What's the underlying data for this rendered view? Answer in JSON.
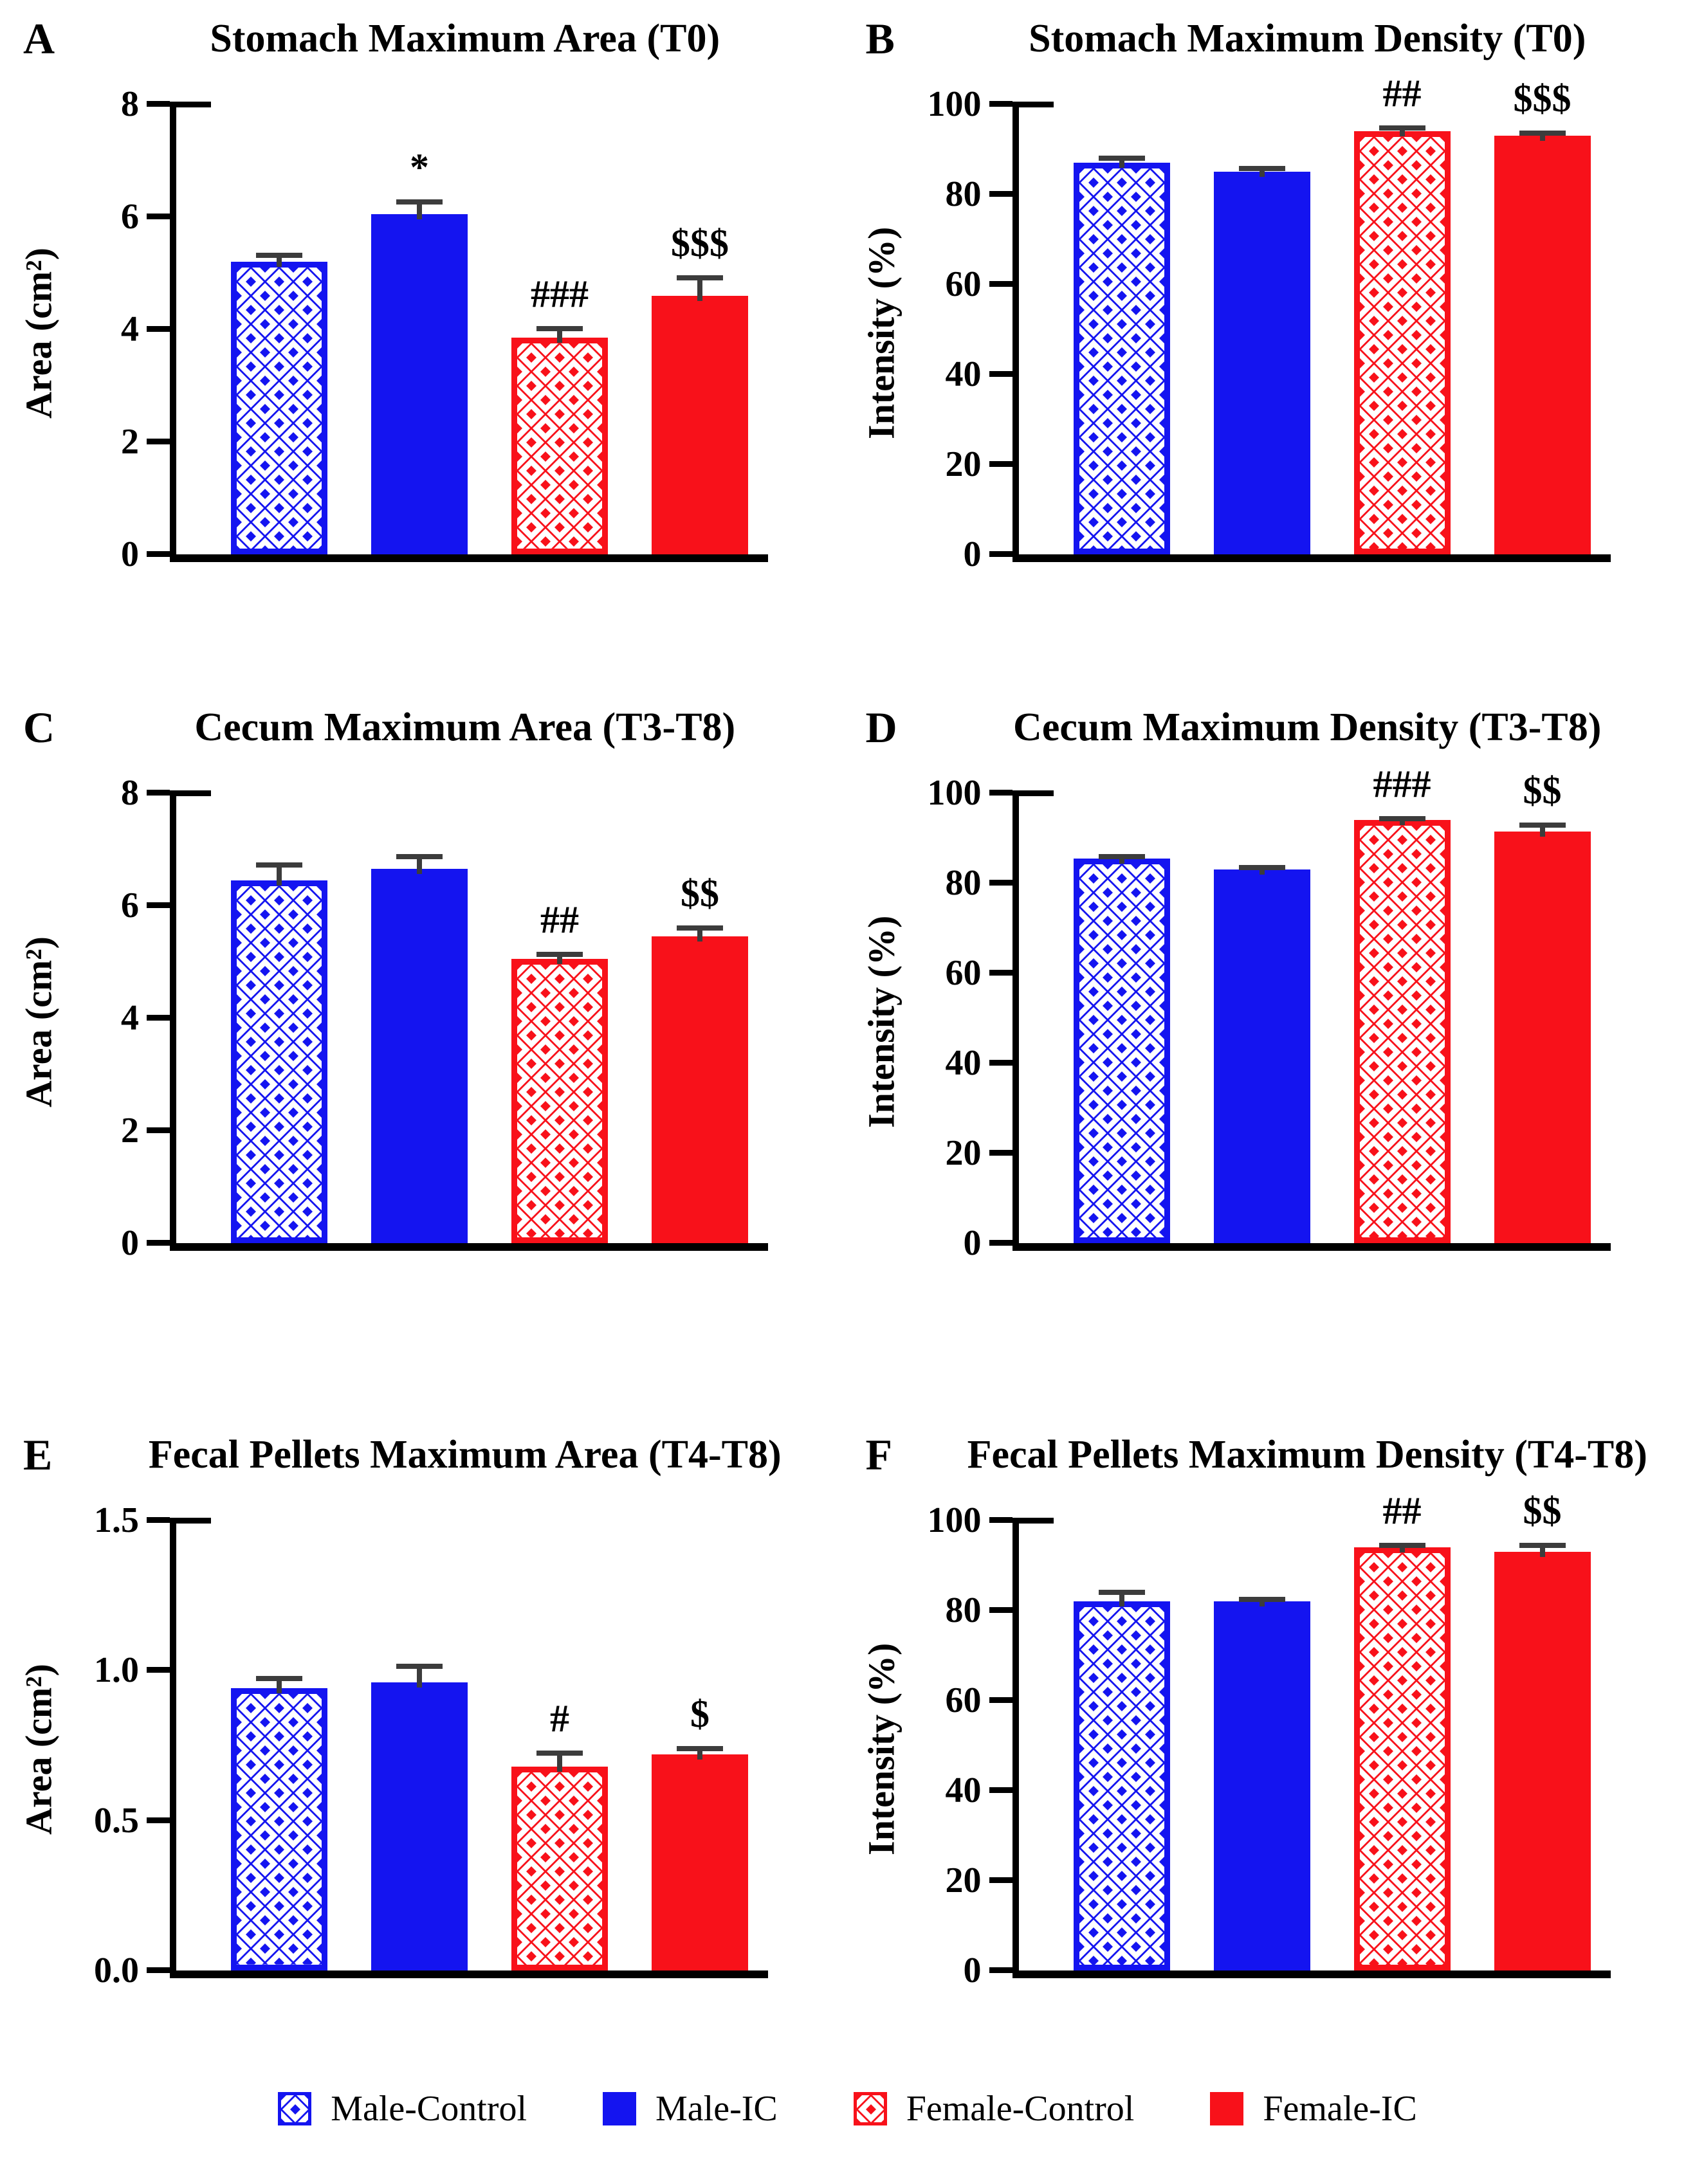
{
  "colors": {
    "male_blue": "#1414F0",
    "female_red": "#F8111A",
    "error_bar": "#3C3C3C",
    "axis": "#000000"
  },
  "legend": {
    "items": [
      {
        "label": "Male-Control",
        "color": "#1414F0",
        "pattern": "checker"
      },
      {
        "label": "Male-IC",
        "color": "#1414F0",
        "pattern": "solid"
      },
      {
        "label": "Female-Control",
        "color": "#F8111A",
        "pattern": "checker"
      },
      {
        "label": "Female-IC",
        "color": "#F8111A",
        "pattern": "solid"
      }
    ],
    "position": "bottom"
  },
  "chart_data": [
    {
      "type": "bar",
      "panel": "A",
      "title": "Stomach Maximum Area (T0)",
      "xlabel": "",
      "ylabel": "Area (cm²)",
      "ylim": [
        0,
        8
      ],
      "ymax": 8,
      "yticks": [
        "0",
        "2",
        "4",
        "6",
        "8"
      ],
      "grid": false,
      "categories": [
        "Male-Control",
        "Male-IC",
        "Female-Control",
        "Female-IC"
      ],
      "values": [
        5.2,
        6.05,
        3.85,
        4.6
      ],
      "errors": [
        0.15,
        0.25,
        0.2,
        0.35
      ],
      "annotations": [
        "",
        "*",
        "###",
        "$$$"
      ]
    },
    {
      "type": "bar",
      "panel": "B",
      "title": "Stomach Maximum Density (T0)",
      "xlabel": "",
      "ylabel": "Intensity (%)",
      "ylim": [
        0,
        100
      ],
      "ymax": 100,
      "yticks": [
        "0",
        "20",
        "40",
        "60",
        "80",
        "100"
      ],
      "grid": false,
      "categories": [
        "Male-Control",
        "Male-IC",
        "Female-Control",
        "Female-IC"
      ],
      "values": [
        87,
        85,
        94,
        93
      ],
      "errors": [
        1.5,
        1.2,
        1.2,
        1.0
      ],
      "annotations": [
        "",
        "",
        "##",
        "$$$"
      ]
    },
    {
      "type": "bar",
      "panel": "C",
      "title": "Cecum Maximum Area (T3-T8)",
      "xlabel": "",
      "ylabel": "Area (cm²)",
      "ylim": [
        0,
        8
      ],
      "ymax": 8,
      "yticks": [
        "0",
        "2",
        "4",
        "6",
        "8"
      ],
      "grid": false,
      "categories": [
        "Male-Control",
        "Male-IC",
        "Female-Control",
        "Female-IC"
      ],
      "values": [
        6.45,
        6.65,
        5.05,
        5.45
      ],
      "errors": [
        0.3,
        0.25,
        0.12,
        0.18
      ],
      "annotations": [
        "",
        "",
        "##",
        "$$"
      ]
    },
    {
      "type": "bar",
      "panel": "D",
      "title": "Cecum Maximum Density (T3-T8)",
      "xlabel": "",
      "ylabel": "Intensity (%)",
      "ylim": [
        0,
        100
      ],
      "ymax": 100,
      "yticks": [
        "0",
        "20",
        "40",
        "60",
        "80",
        "100"
      ],
      "grid": false,
      "categories": [
        "Male-Control",
        "Male-IC",
        "Female-Control",
        "Female-IC"
      ],
      "values": [
        85.5,
        83,
        94,
        91.5
      ],
      "errors": [
        0.8,
        0.8,
        0.7,
        1.8
      ],
      "annotations": [
        "",
        "",
        "###",
        "$$"
      ]
    },
    {
      "type": "bar",
      "panel": "E",
      "title": "Fecal Pellets Maximum Area (T4-T8)",
      "xlabel": "",
      "ylabel": "Area (cm²)",
      "ylim": [
        0,
        1.5
      ],
      "ymax": 1.5,
      "yticks": [
        "0.0",
        "0.5",
        "1.0",
        "1.5"
      ],
      "grid": false,
      "categories": [
        "Male-Control",
        "Male-IC",
        "Female-Control",
        "Female-IC"
      ],
      "values": [
        0.94,
        0.96,
        0.68,
        0.72
      ],
      "errors": [
        0.04,
        0.06,
        0.05,
        0.025
      ],
      "annotations": [
        "",
        "",
        "#",
        "$"
      ]
    },
    {
      "type": "bar",
      "panel": "F",
      "title": "Fecal Pellets Maximum Density (T4-T8)",
      "xlabel": "",
      "ylabel": "Intensity (%)",
      "ylim": [
        0,
        100
      ],
      "ymax": 100,
      "yticks": [
        "0",
        "20",
        "40",
        "60",
        "80",
        "100"
      ],
      "grid": false,
      "categories": [
        "Male-Control",
        "Male-IC",
        "Female-Control",
        "Female-IC"
      ],
      "values": [
        82,
        82,
        94,
        93
      ],
      "errors": [
        2.5,
        0.8,
        0.8,
        1.8
      ],
      "annotations": [
        "",
        "",
        "##",
        "$$"
      ]
    }
  ]
}
